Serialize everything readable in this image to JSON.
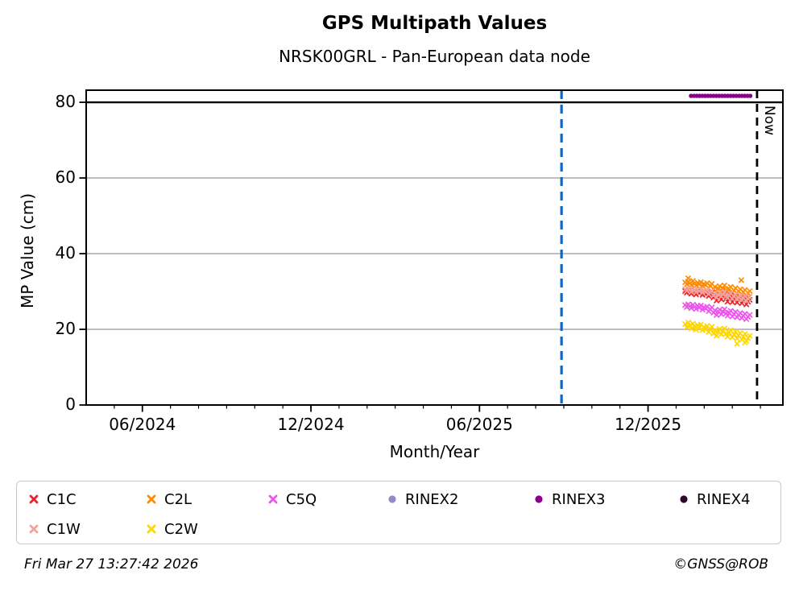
{
  "title": "GPS Multipath Values",
  "subtitle": "NRSK00GRL - Pan-European data node",
  "footer": {
    "timestamp": "Fri Mar 27 13:27:42 2026",
    "credit": "©GNSS@ROB"
  },
  "chart_data": {
    "type": "scatter",
    "title": "GPS Multipath Values",
    "subtitle": "NRSK00GRL - Pan-European data node",
    "xlabel": "Month/Year",
    "ylabel": "MP Value (cm)",
    "x_axis_note": "months since 2024-04",
    "xlim": [
      0,
      24.8
    ],
    "ylim": [
      0,
      83.2
    ],
    "y_ticks": [
      0,
      20,
      40,
      60,
      80
    ],
    "gridlines_y": [
      20,
      40,
      60
    ],
    "threshold_line_y": 80,
    "x_major_ticks": [
      {
        "pos": 2,
        "label": "06/2024"
      },
      {
        "pos": 8,
        "label": "12/2024"
      },
      {
        "pos": 14,
        "label": "06/2025"
      },
      {
        "pos": 20,
        "label": "12/2025"
      }
    ],
    "x_minor_tick_step": 1,
    "annotations": {
      "blue_line": {
        "pos": 16.92,
        "style": "dashed",
        "color": "#1565c0"
      },
      "now_line": {
        "pos": 23.88,
        "style": "dashed",
        "color": "#000000",
        "label": "Now"
      }
    },
    "x_months": [
      21.32,
      21.38,
      21.43,
      21.49,
      21.54,
      21.6,
      21.66,
      21.71,
      21.77,
      21.82,
      21.88,
      21.94,
      21.99,
      22.05,
      22.1,
      22.16,
      22.22,
      22.27,
      22.33,
      22.38,
      22.44,
      22.5,
      22.55,
      22.61,
      22.66,
      22.72,
      22.78,
      22.83,
      22.89,
      22.94,
      23.0,
      23.06,
      23.11,
      23.17,
      23.22,
      23.28,
      23.34,
      23.39,
      23.45,
      23.5,
      23.56,
      23.62
    ],
    "series": [
      {
        "name": "C2L",
        "color": "#ff8c00",
        "marker": "x",
        "y": [
          32.4,
          31.9,
          32.6,
          32.2,
          31.7,
          32.8,
          32.1,
          31.6,
          32.3,
          31.9,
          32.5,
          31.4,
          32.0,
          31.7,
          32.2,
          30.9,
          31.5,
          32.0,
          30.6,
          31.2,
          29.9,
          30.8,
          31.4,
          30.2,
          30.9,
          31.6,
          30.4,
          29.8,
          30.7,
          31.2,
          29.6,
          30.3,
          30.9,
          29.5,
          30.1,
          30.6,
          29.3,
          29.9,
          30.4,
          28.9,
          29.6,
          30.1
        ],
        "extra_x": [
          21.43,
          23.32
        ],
        "extra_y": [
          33.5,
          33.0
        ]
      },
      {
        "name": "C1C",
        "color": "#e8232a",
        "marker": "x",
        "y": [
          30.1,
          29.7,
          30.2,
          29.8,
          29.4,
          30.0,
          29.6,
          29.2,
          29.9,
          29.5,
          30.0,
          29.1,
          29.6,
          29.3,
          29.8,
          28.8,
          29.2,
          29.6,
          28.4,
          29.0,
          27.6,
          28.6,
          29.1,
          27.9,
          28.6,
          29.2,
          28.1,
          27.3,
          28.3,
          28.9,
          27.2,
          27.9,
          28.5,
          27.1,
          27.7,
          28.2,
          26.9,
          27.5,
          28.0,
          26.6,
          27.3,
          27.8
        ]
      },
      {
        "name": "C1W",
        "color": "#f4a09b",
        "marker": "x",
        "y": [
          30.6,
          30.2,
          30.8,
          30.4,
          29.9,
          30.7,
          30.3,
          29.8,
          30.5,
          30.1,
          30.6,
          29.7,
          30.2,
          29.9,
          30.4,
          29.3,
          29.8,
          30.1,
          28.9,
          29.5,
          28.4,
          29.2,
          29.7,
          28.7,
          29.3,
          29.9,
          28.8,
          28.3,
          29.0,
          29.5,
          28.1,
          28.7,
          29.2,
          28.0,
          28.5,
          29.0,
          27.8,
          28.3,
          28.8,
          27.5,
          28.1,
          28.6
        ]
      },
      {
        "name": "C5Q",
        "color": "#ee55ee",
        "marker": "x",
        "y": [
          26.4,
          25.9,
          26.6,
          26.1,
          25.6,
          26.5,
          26.0,
          25.4,
          26.2,
          25.7,
          26.3,
          25.2,
          25.8,
          25.5,
          26.0,
          24.8,
          25.3,
          25.8,
          24.4,
          25.0,
          23.8,
          24.7,
          25.2,
          24.0,
          24.7,
          25.3,
          24.2,
          23.6,
          24.4,
          24.9,
          23.4,
          24.0,
          24.6,
          23.2,
          23.8,
          24.3,
          23.0,
          23.6,
          24.1,
          22.7,
          23.3,
          23.8
        ]
      },
      {
        "name": "C2W",
        "color": "#ffd700",
        "marker": "x",
        "y": [
          21.4,
          20.6,
          21.8,
          21.0,
          20.2,
          21.5,
          20.8,
          19.9,
          21.1,
          20.4,
          21.3,
          19.8,
          20.6,
          20.0,
          20.9,
          19.3,
          20.1,
          20.7,
          18.9,
          19.7,
          18.3,
          19.4,
          20.1,
          18.7,
          19.5,
          20.2,
          18.9,
          18.1,
          19.2,
          19.8,
          17.9,
          18.7,
          19.4,
          17.6,
          18.4,
          19.0,
          17.3,
          18.1,
          18.8,
          16.9,
          17.7,
          18.3
        ],
        "extra_x": [
          23.17,
          23.45
        ],
        "extra_y": [
          16.2,
          16.5
        ]
      },
      {
        "name": "RINEX2",
        "color": "#8f8bc7",
        "marker": "dot",
        "y": []
      },
      {
        "name": "RINEX3",
        "color": "#8b008b",
        "marker": "dot",
        "band_y": 81.7,
        "band_x_range": [
          21.53,
          23.68
        ]
      },
      {
        "name": "RINEX4",
        "color": "#2d0a2d",
        "marker": "dot",
        "y": []
      }
    ],
    "legend": {
      "position": "bottom",
      "entries": [
        "C1C",
        "C2L",
        "C5Q",
        "RINEX2",
        "RINEX3",
        "RINEX4",
        "C1W",
        "C2W"
      ]
    }
  }
}
